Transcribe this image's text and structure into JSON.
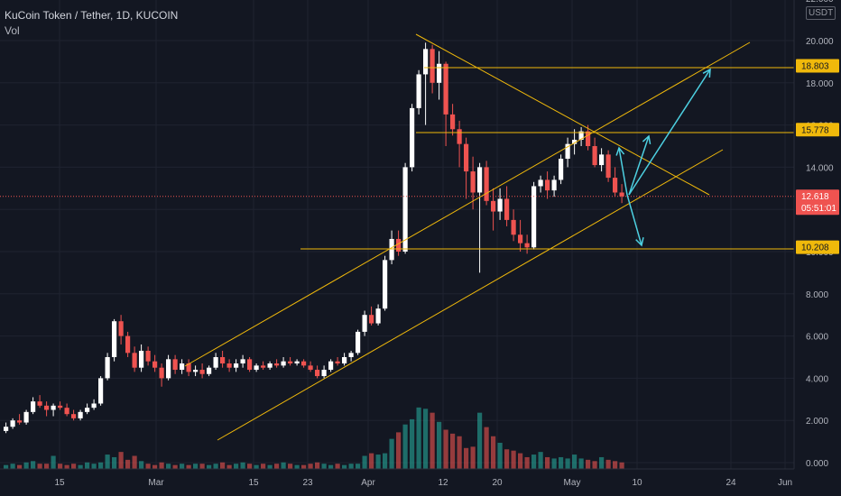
{
  "header": {
    "title": "KuCoin Token / Tether, 1D, KUCOIN",
    "subtitle": "Vol"
  },
  "price_axis": {
    "unit": "USDT",
    "ticks": [
      "22.000",
      "20.000",
      "18.000",
      "16.000",
      "14.000",
      "12.000",
      "10.000",
      "8.000",
      "6.000",
      "4.000",
      "2.000",
      "0.000"
    ]
  },
  "time_axis": {
    "ticks": [
      "15",
      "Mar",
      "15",
      "23",
      "Apr",
      "12",
      "20",
      "May",
      "10",
      "24",
      "Jun"
    ]
  },
  "price_labels": [
    {
      "value": 18.803,
      "text": "18.803",
      "color": "#f0b90b",
      "kind": "level"
    },
    {
      "value": 15.778,
      "text": "15.778",
      "color": "#f0b90b",
      "kind": "level"
    },
    {
      "value": 12.618,
      "text": "12.618",
      "sub": "05:51:01",
      "color": "#ef5350",
      "kind": "last"
    },
    {
      "value": 10.208,
      "text": "10.208",
      "color": "#f0b90b",
      "kind": "level"
    }
  ],
  "colors": {
    "up": "#ffffff",
    "down": "#ef5350",
    "vol_up": "#26a69a",
    "vol_down": "#ef5350",
    "trendline": "#f0b90b",
    "arrow": "#4dd0e1",
    "background": "#131722"
  },
  "chart_data": {
    "type": "candlestick",
    "title": "KuCoin Token / Tether, 1D, KUCOIN",
    "symbol": "KCS/USDT",
    "interval": "1D",
    "ylim": [
      0,
      22
    ],
    "last_price": 12.618,
    "countdown": "05:51:01",
    "candles_ohlc": [
      [
        1.5,
        1.9,
        1.4,
        1.7
      ],
      [
        1.7,
        2.1,
        1.6,
        2.0
      ],
      [
        2.0,
        2.3,
        1.8,
        1.9
      ],
      [
        1.9,
        2.5,
        1.8,
        2.4
      ],
      [
        2.4,
        3.1,
        2.3,
        2.9
      ],
      [
        2.9,
        3.2,
        2.6,
        2.7
      ],
      [
        2.7,
        2.9,
        2.2,
        2.5
      ],
      [
        2.5,
        2.8,
        2.2,
        2.7
      ],
      [
        2.7,
        2.9,
        2.5,
        2.6
      ],
      [
        2.6,
        2.8,
        2.2,
        2.3
      ],
      [
        2.3,
        2.5,
        2.0,
        2.1
      ],
      [
        2.1,
        2.5,
        2.0,
        2.4
      ],
      [
        2.4,
        2.8,
        2.3,
        2.6
      ],
      [
        2.6,
        3.0,
        2.5,
        2.8
      ],
      [
        2.8,
        4.1,
        2.7,
        4.0
      ],
      [
        4.0,
        5.2,
        3.9,
        5.0
      ],
      [
        5.0,
        6.8,
        4.8,
        6.7
      ],
      [
        6.7,
        7.0,
        5.6,
        6.0
      ],
      [
        6.0,
        6.2,
        5.0,
        5.2
      ],
      [
        5.2,
        5.5,
        4.3,
        4.5
      ],
      [
        4.5,
        5.6,
        4.3,
        5.3
      ],
      [
        5.3,
        5.5,
        4.6,
        4.8
      ],
      [
        4.8,
        5.1,
        4.3,
        4.5
      ],
      [
        4.5,
        4.7,
        3.6,
        4.0
      ],
      [
        4.0,
        5.1,
        3.9,
        4.9
      ],
      [
        4.9,
        5.1,
        4.2,
        4.4
      ],
      [
        4.4,
        4.9,
        4.2,
        4.7
      ],
      [
        4.7,
        4.9,
        4.1,
        4.3
      ],
      [
        4.3,
        4.6,
        4.1,
        4.4
      ],
      [
        4.4,
        4.7,
        4.0,
        4.2
      ],
      [
        4.2,
        4.6,
        4.1,
        4.5
      ],
      [
        4.5,
        5.2,
        4.4,
        5.0
      ],
      [
        5.0,
        5.3,
        4.5,
        4.7
      ],
      [
        4.7,
        4.9,
        4.3,
        4.5
      ],
      [
        4.5,
        4.9,
        4.3,
        4.7
      ],
      [
        4.7,
        5.1,
        4.5,
        4.9
      ],
      [
        4.9,
        5.0,
        4.3,
        4.4
      ],
      [
        4.4,
        4.7,
        4.3,
        4.6
      ],
      [
        4.6,
        4.8,
        4.4,
        4.5
      ],
      [
        4.5,
        4.8,
        4.4,
        4.7
      ],
      [
        4.7,
        4.9,
        4.5,
        4.6
      ],
      [
        4.6,
        5.0,
        4.5,
        4.8
      ],
      [
        4.8,
        5.0,
        4.6,
        4.7
      ],
      [
        4.7,
        4.9,
        4.6,
        4.8
      ],
      [
        4.8,
        4.9,
        4.5,
        4.6
      ],
      [
        4.6,
        4.8,
        4.3,
        4.4
      ],
      [
        4.4,
        4.6,
        4.0,
        4.1
      ],
      [
        4.1,
        4.6,
        4.0,
        4.4
      ],
      [
        4.4,
        4.9,
        4.3,
        4.8
      ],
      [
        4.8,
        5.0,
        4.6,
        4.7
      ],
      [
        4.7,
        5.2,
        4.6,
        5.0
      ],
      [
        5.0,
        5.3,
        4.8,
        5.2
      ],
      [
        5.2,
        6.3,
        5.1,
        6.2
      ],
      [
        6.2,
        7.2,
        6.0,
        7.0
      ],
      [
        7.0,
        7.4,
        6.5,
        6.6
      ],
      [
        6.6,
        7.5,
        6.5,
        7.3
      ],
      [
        7.3,
        9.8,
        7.2,
        9.6
      ],
      [
        9.6,
        11.0,
        9.4,
        10.6
      ],
      [
        10.6,
        11.0,
        9.8,
        10.0
      ],
      [
        10.0,
        14.2,
        9.9,
        14.0
      ],
      [
        14.0,
        17.0,
        13.8,
        16.8
      ],
      [
        16.8,
        18.6,
        16.5,
        18.4
      ],
      [
        18.4,
        19.9,
        16.0,
        19.6
      ],
      [
        19.6,
        19.8,
        17.5,
        18.0
      ],
      [
        18.0,
        19.5,
        17.2,
        18.9
      ],
      [
        18.9,
        19.0,
        15.0,
        16.5
      ],
      [
        16.5,
        17.0,
        15.5,
        15.8
      ],
      [
        15.8,
        16.2,
        14.0,
        15.1
      ],
      [
        15.1,
        15.4,
        12.5,
        13.8
      ],
      [
        13.8,
        14.5,
        12.0,
        12.8
      ],
      [
        12.8,
        14.2,
        9.0,
        14.0
      ],
      [
        14.0,
        14.3,
        12.2,
        12.4
      ],
      [
        12.4,
        13.0,
        11.0,
        11.9
      ],
      [
        11.9,
        13.0,
        11.5,
        12.5
      ],
      [
        12.5,
        13.1,
        11.2,
        11.5
      ],
      [
        11.5,
        12.0,
        10.5,
        10.8
      ],
      [
        10.8,
        11.5,
        10.0,
        10.4
      ],
      [
        10.4,
        10.8,
        9.9,
        10.2
      ],
      [
        10.2,
        13.3,
        10.1,
        13.1
      ],
      [
        13.1,
        13.6,
        12.8,
        13.4
      ],
      [
        13.4,
        13.8,
        12.5,
        12.9
      ],
      [
        12.9,
        13.6,
        12.6,
        13.4
      ],
      [
        13.4,
        14.6,
        13.2,
        14.4
      ],
      [
        14.4,
        15.4,
        14.0,
        15.1
      ],
      [
        15.1,
        15.8,
        14.6,
        15.3
      ],
      [
        15.3,
        15.9,
        15.0,
        15.7
      ],
      [
        15.7,
        16.0,
        14.8,
        15.0
      ],
      [
        15.0,
        15.4,
        14.0,
        14.1
      ],
      [
        14.1,
        14.9,
        13.8,
        14.6
      ],
      [
        14.6,
        14.8,
        13.3,
        13.5
      ],
      [
        13.5,
        14.0,
        12.6,
        12.8
      ],
      [
        12.8,
        13.2,
        12.3,
        12.618
      ]
    ],
    "volume": [
      0.3,
      0.4,
      0.3,
      0.5,
      0.6,
      0.4,
      0.4,
      1.0,
      0.4,
      0.3,
      0.4,
      0.3,
      0.5,
      0.4,
      0.5,
      1.1,
      0.9,
      1.3,
      0.7,
      1.0,
      0.6,
      0.4,
      0.3,
      0.5,
      0.4,
      0.3,
      0.4,
      0.3,
      0.4,
      0.4,
      0.3,
      0.4,
      0.5,
      0.3,
      0.4,
      0.5,
      0.4,
      0.3,
      0.4,
      0.3,
      0.4,
      0.5,
      0.4,
      0.3,
      0.3,
      0.4,
      0.5,
      0.4,
      0.3,
      0.4,
      0.3,
      0.4,
      0.4,
      1.0,
      1.2,
      1.1,
      1.2,
      2.3,
      2.8,
      3.4,
      3.8,
      4.7,
      4.6,
      4.3,
      3.6,
      3.0,
      2.7,
      2.5,
      1.6,
      1.7,
      4.3,
      3.2,
      2.5,
      2.0,
      1.5,
      1.4,
      1.2,
      0.9,
      1.1,
      1.3,
      0.9,
      0.8,
      0.9,
      0.8,
      1.1,
      0.8,
      0.7,
      0.6,
      0.9,
      0.7,
      0.6,
      0.5
    ],
    "horizontal_levels": [
      18.803,
      15.778,
      10.208
    ]
  }
}
